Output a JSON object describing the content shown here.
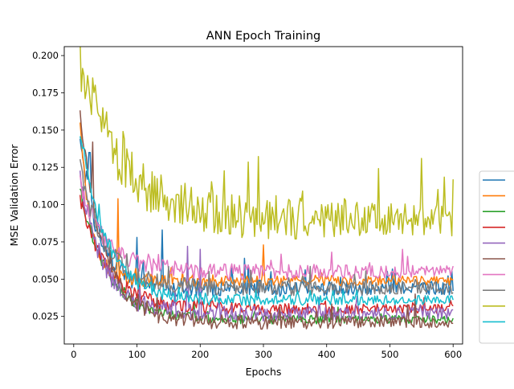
{
  "chart_data": {
    "type": "line",
    "title": "ANN Epoch Training",
    "xlabel": "Epochs",
    "ylabel": "MSE Validation Error",
    "xlim": [
      -15,
      615
    ],
    "ylim": [
      0.0065,
      0.206
    ],
    "x_ticks": [
      0,
      100,
      200,
      300,
      400,
      500,
      600
    ],
    "y_ticks": [
      0.025,
      0.05,
      0.075,
      0.1,
      0.125,
      0.15,
      0.175,
      0.2
    ],
    "x_tick_labels": [
      "0",
      "100",
      "200",
      "300",
      "400",
      "500",
      "600"
    ],
    "y_tick_labels": [
      "0.025",
      "0.050",
      "0.075",
      "0.100",
      "0.125",
      "0.150",
      "0.175",
      "0.200"
    ],
    "grid": false,
    "legend_placement": "right, outside plot area",
    "epochs": {
      "start": 10,
      "end": 600,
      "step": 2
    },
    "series": [
      {
        "color": "#1f77b4",
        "start": 0.145,
        "end": 0.044,
        "decay": 0.5,
        "noise": 0.0045,
        "peaks": [
          [
            25,
            0.135
          ],
          [
            100,
            0.078
          ],
          [
            140,
            0.083
          ],
          [
            270,
            0.064
          ]
        ]
      },
      {
        "color": "#ff7f0e",
        "start": 0.155,
        "end": 0.049,
        "decay": 0.15,
        "noise": 0.003,
        "peaks": [
          [
            70,
            0.104
          ],
          [
            300,
            0.073
          ]
        ]
      },
      {
        "color": "#2ca02c",
        "start": 0.11,
        "end": 0.023,
        "decay": 0.9,
        "noise": 0.0025,
        "peaks": []
      },
      {
        "color": "#d62728",
        "start": 0.105,
        "end": 0.03,
        "decay": 0.9,
        "noise": 0.003,
        "peaks": []
      },
      {
        "color": "#9467bd",
        "start": 0.12,
        "end": 0.027,
        "decay": 0.7,
        "noise": 0.004,
        "peaks": [
          [
            180,
            0.072
          ],
          [
            200,
            0.07
          ]
        ]
      },
      {
        "color": "#8c564b",
        "start": 0.16,
        "end": 0.021,
        "decay": 0.7,
        "noise": 0.0035,
        "peaks": [
          [
            30,
            0.142
          ],
          [
            540,
            0.04
          ]
        ]
      },
      {
        "color": "#e377c2",
        "start": 0.115,
        "end": 0.055,
        "decay": 0.8,
        "noise": 0.004,
        "peaks": [
          [
            520,
            0.07
          ]
        ]
      },
      {
        "color": "#7f7f7f",
        "start": 0.125,
        "end": 0.044,
        "decay": 0.8,
        "noise": 0.004,
        "peaks": [
          [
            280,
            0.056
          ]
        ]
      },
      {
        "color": "#bcbd22",
        "start": 0.194,
        "end": 0.09,
        "decay": 1.6,
        "noise": 0.011,
        "peaks": [
          [
            320,
            0.106
          ],
          [
            550,
            0.131
          ],
          [
            600,
            0.117
          ]
        ]
      },
      {
        "color": "#17becf",
        "start": 0.15,
        "end": 0.036,
        "decay": 0.8,
        "noise": 0.003,
        "peaks": []
      }
    ]
  }
}
